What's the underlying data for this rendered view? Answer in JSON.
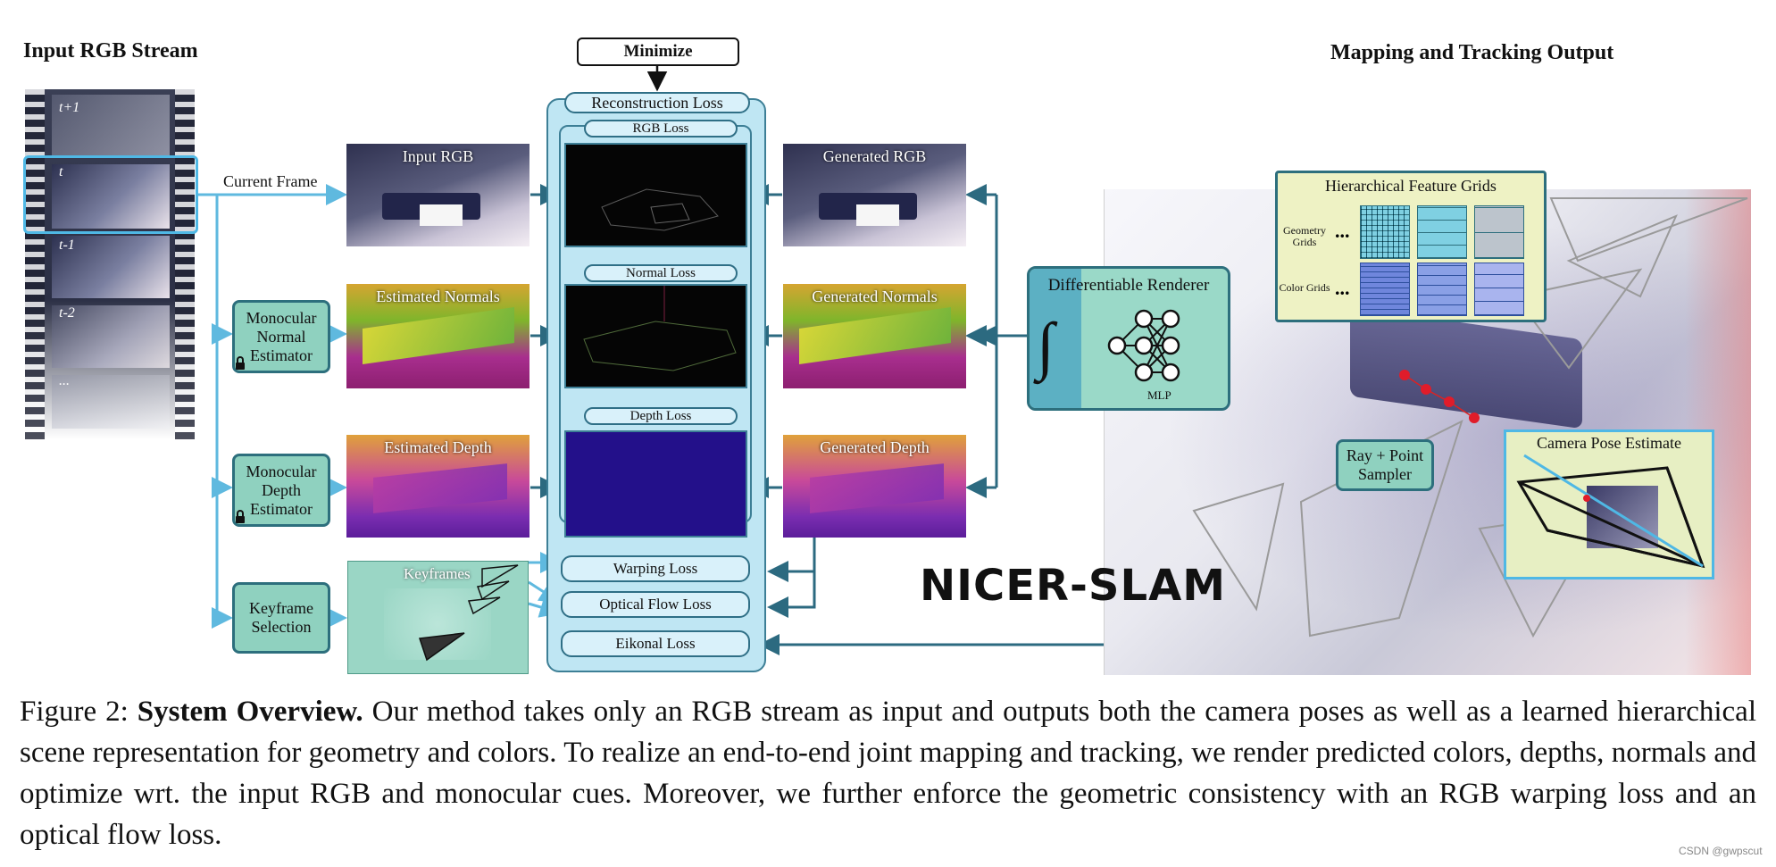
{
  "headers": {
    "left": "Input RGB Stream",
    "right": "Mapping and Tracking Output"
  },
  "minimize": "Minimize",
  "film_labels": [
    "t+1",
    "t",
    "t-1",
    "t-2",
    "..."
  ],
  "current_frame": "Current Frame",
  "estimators": {
    "normal": "Monocular Normal Estimator",
    "depth": "Monocular Depth Estimator",
    "keyframe": "Keyframe Selection"
  },
  "images": {
    "input_rgb": "Input RGB",
    "estimated_normals": "Estimated Normals",
    "estimated_depth": "Estimated Depth",
    "keyframes": "Keyframes",
    "generated_rgb": "Generated RGB",
    "generated_normals": "Generated Normals",
    "generated_depth": "Generated Depth"
  },
  "losses": {
    "reconstruction": "Reconstruction Loss",
    "rgb": "RGB Loss",
    "normal": "Normal Loss",
    "depth": "Depth Loss",
    "warping": "Warping Loss",
    "optical_flow": "Optical Flow Loss",
    "eikonal": "Eikonal Loss"
  },
  "renderer": {
    "title": "Differentiable Renderer",
    "integral": "∫",
    "mlp": "MLP"
  },
  "grids": {
    "title": "Hierarchical Feature Grids",
    "geometry": "Geometry Grids",
    "color": "Color Grids",
    "dots": "..."
  },
  "sampler": "Ray + Point Sampler",
  "camera_pose": "Camera Pose Estimate",
  "nicer_slam": "NICER-SLAM",
  "caption": {
    "prefix": "Figure 2: ",
    "bold": "System Overview.",
    "text": " Our method takes only an RGB stream as input and outputs both the camera poses as well as a learned hierarchical scene representation for geometry and colors. To realize an end-to-end joint mapping and tracking, we render predicted colors, depths, normals and optimize wrt. the input RGB and monocular cues. Moreover, we further enforce the geometric consistency with an RGB warping loss and an optical flow loss."
  },
  "watermark": "CSDN @gwpscut"
}
